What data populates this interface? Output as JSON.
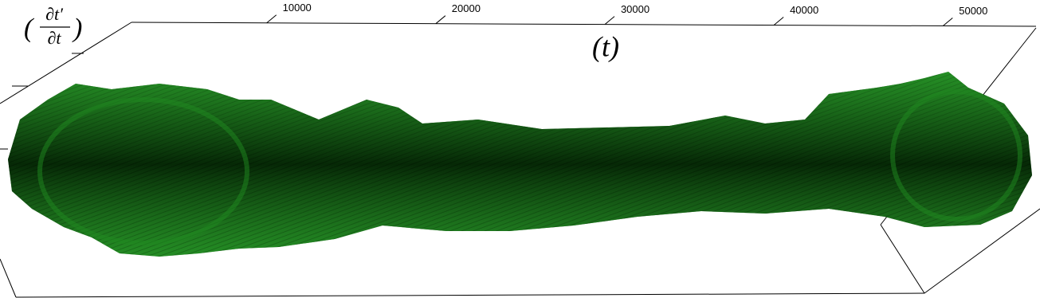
{
  "chart_data": {
    "type": "surface3d",
    "xlabel": "(t)",
    "ylabel": {
      "numerator": "∂t′",
      "denominator": "∂t"
    },
    "xlim": [
      2000,
      55500
    ],
    "xticks": [
      10000,
      20000,
      30000,
      40000,
      50000
    ],
    "color": "#1f8a1f"
  }
}
